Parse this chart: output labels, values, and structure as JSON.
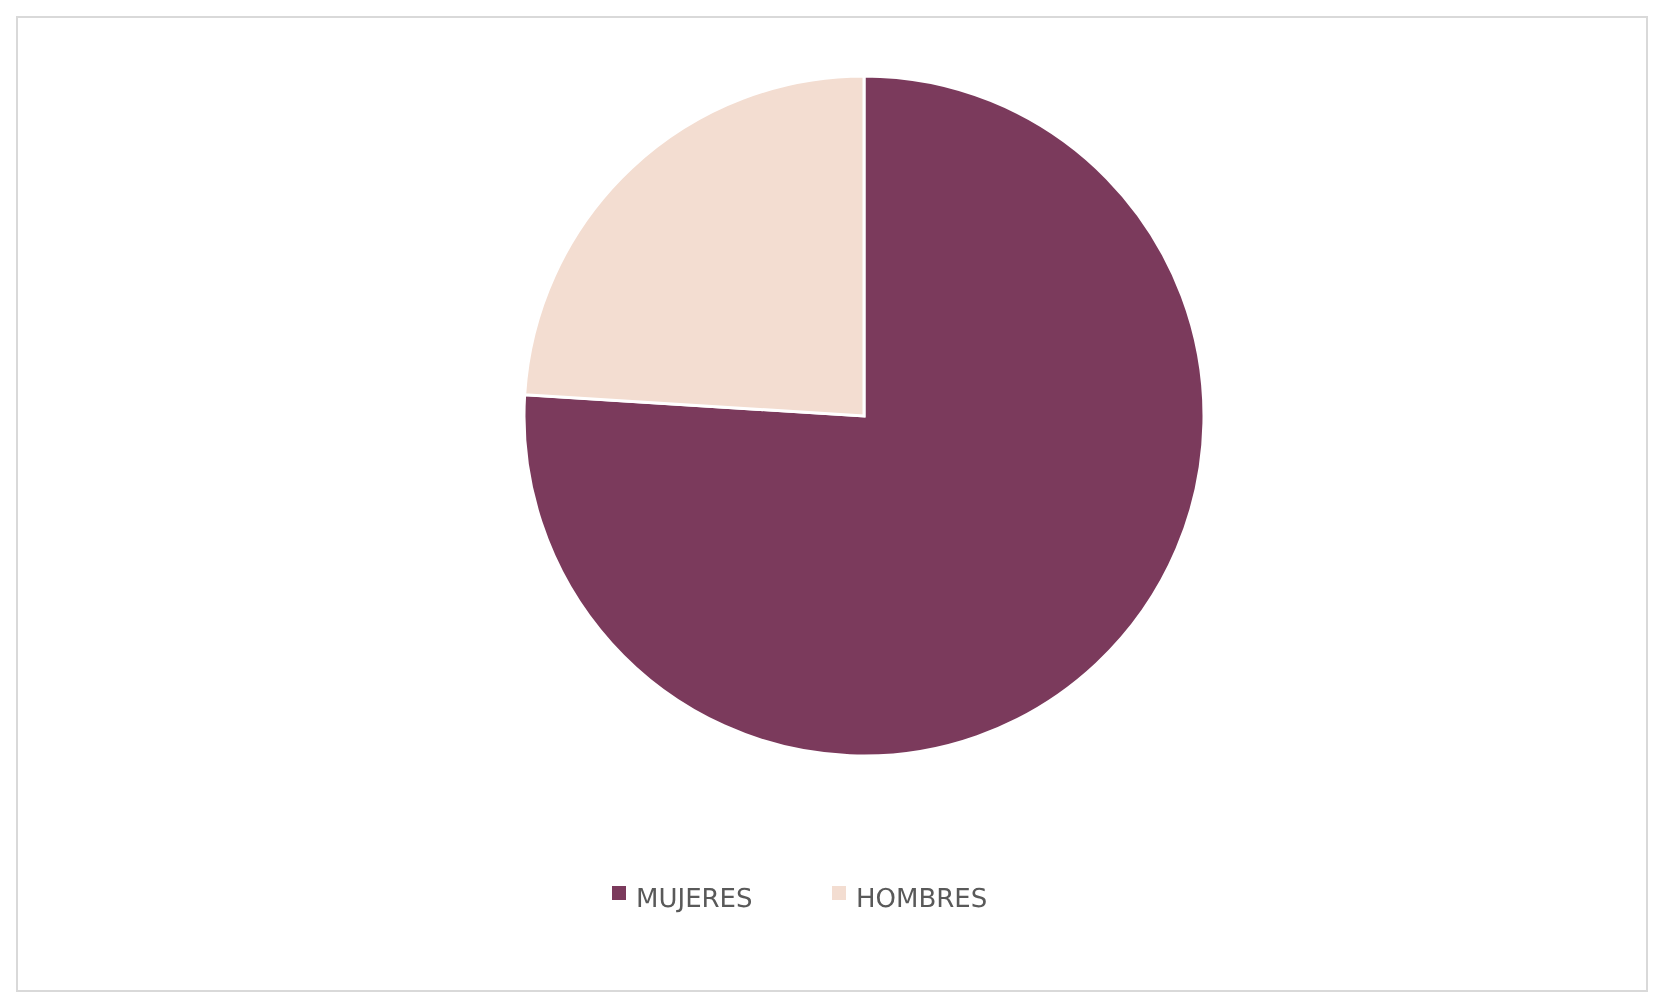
{
  "chart_data": {
    "type": "pie",
    "categories": [
      "MUJERES",
      "HOMBRES"
    ],
    "values": [
      76,
      24
    ],
    "colors": [
      "#7b3a5c",
      "#f3ddd1"
    ],
    "legend": "bottom"
  }
}
